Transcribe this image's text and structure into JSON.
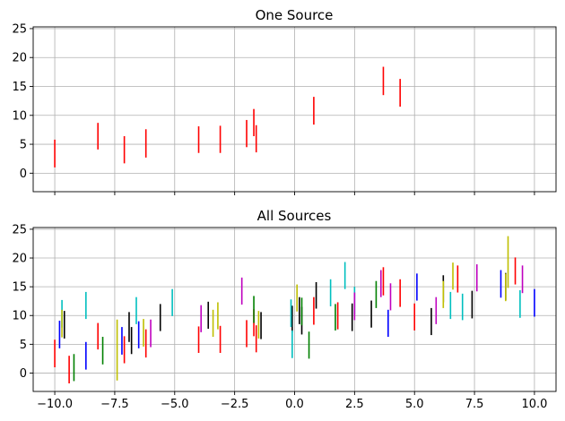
{
  "chart_data": [
    {
      "type": "errorbar",
      "title": "One Source",
      "xlim": [
        -10.9,
        10.9
      ],
      "ylim": [
        -3.2,
        25.3
      ],
      "xticks": [
        -10,
        -7.5,
        -5,
        -2.5,
        0,
        2.5,
        5,
        7.5,
        10
      ],
      "xtick_labels_visible": false,
      "yticks": [
        0,
        5,
        10,
        15,
        20,
        25
      ],
      "ytick_labels": [
        "0",
        "5",
        "10",
        "15",
        "20",
        "25"
      ],
      "grid": true,
      "series": [
        {
          "color": "#ff0000",
          "bars": [
            {
              "x": -10.0,
              "low": 1.0,
              "high": 5.8
            },
            {
              "x": -8.2,
              "low": 4.1,
              "high": 8.7
            },
            {
              "x": -7.1,
              "low": 1.7,
              "high": 6.4
            },
            {
              "x": -6.2,
              "low": 2.7,
              "high": 7.6
            },
            {
              "x": -4.0,
              "low": 3.5,
              "high": 8.1
            },
            {
              "x": -3.1,
              "low": 3.5,
              "high": 8.2
            },
            {
              "x": -2.0,
              "low": 4.5,
              "high": 9.2
            },
            {
              "x": -1.7,
              "low": 6.4,
              "high": 11.1
            },
            {
              "x": -1.6,
              "low": 3.6,
              "high": 8.3
            },
            {
              "x": 0.8,
              "low": 8.4,
              "high": 13.2
            },
            {
              "x": 3.7,
              "low": 13.5,
              "high": 18.4
            },
            {
              "x": 4.4,
              "low": 11.5,
              "high": 16.3
            }
          ]
        }
      ]
    },
    {
      "type": "errorbar",
      "title": "All Sources",
      "xlim": [
        -10.9,
        10.9
      ],
      "ylim": [
        -3.2,
        25.3
      ],
      "xticks": [
        -10,
        -7.5,
        -5,
        -2.5,
        0,
        2.5,
        5,
        7.5,
        10
      ],
      "xtick_labels": [
        "−10.0",
        "−7.5",
        "−5.0",
        "−2.5",
        "0.0",
        "2.5",
        "5.0",
        "7.5",
        "10.0"
      ],
      "yticks": [
        0,
        5,
        10,
        15,
        20,
        25
      ],
      "ytick_labels": [
        "0",
        "5",
        "10",
        "15",
        "20",
        "25"
      ],
      "grid": true,
      "series": [
        {
          "color": "#ff0000",
          "bars": [
            {
              "x": -10.0,
              "low": 1.0,
              "high": 5.8
            },
            {
              "x": -9.4,
              "low": -1.8,
              "high": 3.0
            },
            {
              "x": -8.2,
              "low": 4.1,
              "high": 8.7
            },
            {
              "x": -7.1,
              "low": 1.7,
              "high": 6.4
            },
            {
              "x": -6.2,
              "low": 2.7,
              "high": 7.6
            },
            {
              "x": -4.0,
              "low": 3.5,
              "high": 8.1
            },
            {
              "x": -3.1,
              "low": 3.5,
              "high": 8.2
            },
            {
              "x": -2.0,
              "low": 4.5,
              "high": 9.2
            },
            {
              "x": -1.7,
              "low": 6.4,
              "high": 11.1
            },
            {
              "x": -1.6,
              "low": 3.6,
              "high": 8.3
            },
            {
              "x": 0.8,
              "low": 8.4,
              "high": 13.2
            },
            {
              "x": 1.8,
              "low": 7.6,
              "high": 12.3
            },
            {
              "x": 3.7,
              "low": 13.5,
              "high": 18.4
            },
            {
              "x": 4.4,
              "low": 11.5,
              "high": 16.3
            },
            {
              "x": 5.0,
              "low": 7.4,
              "high": 12.1
            },
            {
              "x": 6.8,
              "low": 14.0,
              "high": 18.7
            },
            {
              "x": 9.2,
              "low": 15.4,
              "high": 20.1
            }
          ]
        },
        {
          "color": "#000000",
          "bars": [
            {
              "x": -9.6,
              "low": 6.0,
              "high": 10.8
            },
            {
              "x": -6.9,
              "low": 5.4,
              "high": 10.6
            },
            {
              "x": -6.8,
              "low": 3.3,
              "high": 8.0
            },
            {
              "x": -5.6,
              "low": 7.3,
              "high": 12.0
            },
            {
              "x": -3.6,
              "low": 7.7,
              "high": 12.4
            },
            {
              "x": -1.4,
              "low": 5.9,
              "high": 10.6
            },
            {
              "x": 0.2,
              "low": 8.5,
              "high": 13.2
            },
            {
              "x": 0.9,
              "low": 11.2,
              "high": 15.8
            },
            {
              "x": 0.3,
              "low": 6.7,
              "high": 11.5
            },
            {
              "x": -0.1,
              "low": 7.1,
              "high": 11.7
            },
            {
              "x": 2.4,
              "low": 7.3,
              "high": 12.1
            },
            {
              "x": 3.2,
              "low": 7.9,
              "high": 12.6
            },
            {
              "x": 5.7,
              "low": 6.6,
              "high": 11.3
            },
            {
              "x": 6.2,
              "low": 12.3,
              "high": 17.0
            },
            {
              "x": 7.4,
              "low": 9.5,
              "high": 14.3
            },
            {
              "x": 8.8,
              "low": 12.7,
              "high": 17.4
            }
          ]
        },
        {
          "color": "#00bfbf",
          "bars": [
            {
              "x": -9.7,
              "low": 7.9,
              "high": 12.7
            },
            {
              "x": -8.7,
              "low": 9.4,
              "high": 14.1
            },
            {
              "x": -6.6,
              "low": 8.5,
              "high": 13.2
            },
            {
              "x": -5.1,
              "low": 9.9,
              "high": 14.6
            },
            {
              "x": -0.1,
              "low": 2.6,
              "high": 7.4
            },
            {
              "x": -0.15,
              "low": 8.0,
              "high": 12.8
            },
            {
              "x": 1.5,
              "low": 11.6,
              "high": 16.3
            },
            {
              "x": 2.1,
              "low": 14.6,
              "high": 19.3
            },
            {
              "x": 2.5,
              "low": 10.2,
              "high": 15.0
            },
            {
              "x": 6.5,
              "low": 9.4,
              "high": 14.1
            },
            {
              "x": 7.0,
              "low": 9.2,
              "high": 13.8
            },
            {
              "x": 9.4,
              "low": 9.6,
              "high": 14.4
            }
          ]
        },
        {
          "color": "#0000ff",
          "bars": [
            {
              "x": -9.8,
              "low": 4.3,
              "high": 9.1
            },
            {
              "x": -8.7,
              "low": 0.6,
              "high": 5.4
            },
            {
              "x": -7.2,
              "low": 3.2,
              "high": 8.0
            },
            {
              "x": -6.5,
              "low": 4.3,
              "high": 9.0
            },
            {
              "x": 3.9,
              "low": 6.3,
              "high": 11.0
            },
            {
              "x": 5.1,
              "low": 12.6,
              "high": 17.3
            },
            {
              "x": 8.6,
              "low": 13.1,
              "high": 17.9
            },
            {
              "x": 10.0,
              "low": 9.8,
              "high": 14.6
            }
          ]
        },
        {
          "color": "#bfbf00",
          "bars": [
            {
              "x": -9.7,
              "low": 6.2,
              "high": 11.0
            },
            {
              "x": -7.4,
              "low": -1.3,
              "high": 9.3
            },
            {
              "x": -6.3,
              "low": 4.6,
              "high": 9.4
            },
            {
              "x": -3.4,
              "low": 6.3,
              "high": 11.0
            },
            {
              "x": -3.2,
              "low": 7.6,
              "high": 12.3
            },
            {
              "x": -1.5,
              "low": 6.0,
              "high": 10.8
            },
            {
              "x": 0.1,
              "low": 10.7,
              "high": 15.4
            },
            {
              "x": 6.2,
              "low": 11.3,
              "high": 16.0
            },
            {
              "x": 6.6,
              "low": 14.5,
              "high": 19.2
            },
            {
              "x": 8.9,
              "low": 14.8,
              "high": 23.8
            },
            {
              "x": 8.8,
              "low": 12.5,
              "high": 17.3
            }
          ]
        },
        {
          "color": "#008000",
          "bars": [
            {
              "x": -9.2,
              "low": -1.4,
              "high": 3.3
            },
            {
              "x": -8.0,
              "low": 1.5,
              "high": 6.3
            },
            {
              "x": -1.7,
              "low": 8.7,
              "high": 13.4
            },
            {
              "x": 0.3,
              "low": 8.3,
              "high": 13.1
            },
            {
              "x": 0.6,
              "low": 2.5,
              "high": 7.2
            },
            {
              "x": 1.7,
              "low": 7.4,
              "high": 12.0
            },
            {
              "x": 3.4,
              "low": 11.3,
              "high": 16.0
            }
          ]
        },
        {
          "color": "#bf00bf",
          "bars": [
            {
              "x": -6.0,
              "low": 4.5,
              "high": 9.3
            },
            {
              "x": -3.9,
              "low": 7.1,
              "high": 11.8
            },
            {
              "x": -2.2,
              "low": 11.9,
              "high": 16.6
            },
            {
              "x": 2.5,
              "low": 9.2,
              "high": 14.0
            },
            {
              "x": 3.6,
              "low": 13.2,
              "high": 17.9
            },
            {
              "x": 4.0,
              "low": 10.9,
              "high": 15.6
            },
            {
              "x": 5.9,
              "low": 8.5,
              "high": 13.2
            },
            {
              "x": 7.6,
              "low": 14.2,
              "high": 18.9
            },
            {
              "x": 9.5,
              "low": 13.9,
              "high": 18.7
            }
          ]
        }
      ]
    }
  ]
}
